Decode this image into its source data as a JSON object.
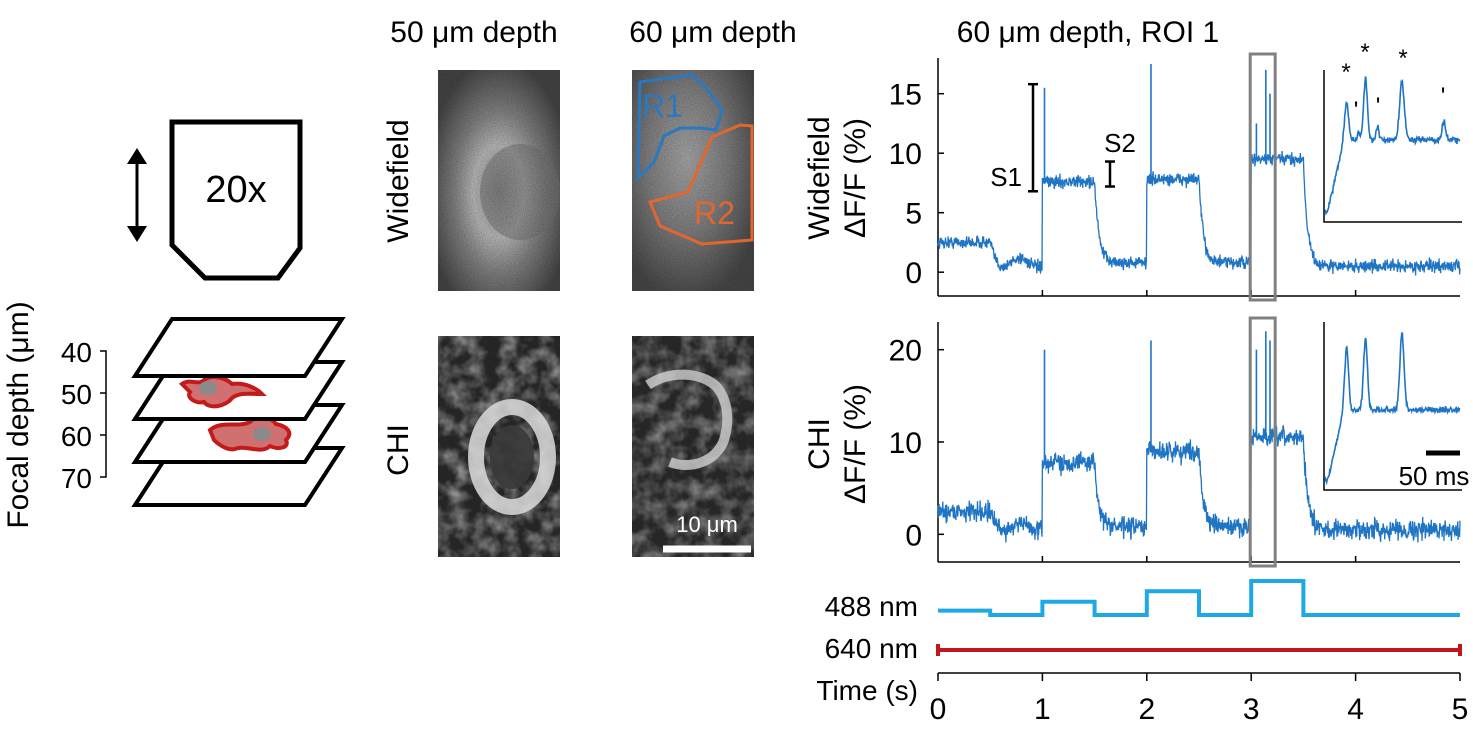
{
  "objective": {
    "label": "20x"
  },
  "focal_axis": {
    "label": "Focal depth (μm)",
    "ticks": [
      "40",
      "50",
      "60",
      "70"
    ]
  },
  "image_panels": {
    "col_titles": [
      "50 μm depth",
      "60 μm depth"
    ],
    "row_labels": [
      "Widefield",
      "CHI"
    ],
    "roi_labels": [
      "R1",
      "R2"
    ],
    "scalebar": "10 μm"
  },
  "colors": {
    "trace": "#1f74c4",
    "roi1": "#2a78c0",
    "roi2": "#e2662f",
    "laser488": "#1ea9e6",
    "laser640": "#c01818",
    "cell": "#c41a1a",
    "box": "#808080"
  },
  "chart_data": [
    {
      "type": "line",
      "title": "60 μm depth, ROI 1",
      "ylabel": "Widefield\nΔF/F (%)",
      "ylabel_lines": [
        "Widefield",
        "ΔF/F (%)"
      ],
      "xlim": [
        0,
        5
      ],
      "ylim": [
        -2,
        18
      ],
      "yticks": [
        0,
        5,
        10,
        15
      ],
      "levels": [
        {
          "from": 0.0,
          "to": 0.5,
          "value": 2.5
        },
        {
          "from": 0.5,
          "to": 1.0,
          "value": 0.8
        },
        {
          "from": 1.0,
          "to": 1.5,
          "value": 7.6
        },
        {
          "from": 1.5,
          "to": 2.0,
          "value": 0.8
        },
        {
          "from": 2.0,
          "to": 2.5,
          "value": 7.8
        },
        {
          "from": 2.5,
          "to": 3.0,
          "value": 0.8
        },
        {
          "from": 3.0,
          "to": 3.5,
          "value": 9.5
        },
        {
          "from": 3.5,
          "to": 5.0,
          "value": 0.5
        }
      ],
      "spikes": [
        {
          "x": 1.02,
          "y": 15.5
        },
        {
          "x": 2.04,
          "y": 17.5
        },
        {
          "x": 3.05,
          "y": 12.5
        },
        {
          "x": 3.14,
          "y": 17.0
        },
        {
          "x": 3.18,
          "y": 15.0
        }
      ],
      "annotations": {
        "s1": "S1",
        "s2": "S2",
        "s1_range": [
          6.8,
          15.8
        ],
        "s2_range": [
          7.2,
          9.3
        ]
      },
      "inset": {
        "peak_marks": [
          "*",
          "'",
          "*",
          "'",
          "*",
          "'"
        ]
      }
    },
    {
      "type": "line",
      "ylabel": "CHI\nΔF/F (%)",
      "ylabel_lines": [
        "CHI",
        "ΔF/F (%)"
      ],
      "xlim": [
        0,
        5
      ],
      "ylim": [
        -3,
        23
      ],
      "yticks": [
        0,
        10,
        20
      ],
      "levels": [
        {
          "from": 0.0,
          "to": 0.5,
          "value": 2.5
        },
        {
          "from": 0.5,
          "to": 1.0,
          "value": 0.8
        },
        {
          "from": 1.0,
          "to": 1.5,
          "value": 7.8
        },
        {
          "from": 1.5,
          "to": 2.0,
          "value": 0.8
        },
        {
          "from": 2.0,
          "to": 2.5,
          "value": 9.0
        },
        {
          "from": 2.5,
          "to": 3.0,
          "value": 0.8
        },
        {
          "from": 3.0,
          "to": 3.5,
          "value": 10.5
        },
        {
          "from": 3.5,
          "to": 5.0,
          "value": 0.5
        }
      ],
      "spikes": [
        {
          "x": 1.02,
          "y": 20.0
        },
        {
          "x": 2.04,
          "y": 21.0
        },
        {
          "x": 3.05,
          "y": 20.0
        },
        {
          "x": 3.14,
          "y": 22.0
        },
        {
          "x": 3.18,
          "y": 21.0
        }
      ],
      "inset": {
        "scalebar": "50 ms"
      }
    },
    {
      "type": "line",
      "xlabel": "Time (s)",
      "xlim": [
        0,
        5
      ],
      "xticks": [
        0,
        1,
        2,
        3,
        4,
        5
      ],
      "series": [
        {
          "name": "488 nm",
          "steps": [
            {
              "from": 0.0,
              "to": 0.5,
              "level": 0.6
            },
            {
              "from": 0.5,
              "to": 1.0,
              "level": 0.3
            },
            {
              "from": 1.0,
              "to": 1.5,
              "level": 1.2
            },
            {
              "from": 1.5,
              "to": 2.0,
              "level": 0.3
            },
            {
              "from": 2.0,
              "to": 2.5,
              "level": 1.9
            },
            {
              "from": 2.5,
              "to": 3.0,
              "level": 0.3
            },
            {
              "from": 3.0,
              "to": 3.5,
              "level": 2.6
            },
            {
              "from": 3.5,
              "to": 5.0,
              "level": 0.3
            }
          ]
        },
        {
          "name": "640 nm",
          "steps": [
            {
              "from": 0.0,
              "to": 5.0,
              "level": 1.0
            }
          ]
        }
      ]
    }
  ]
}
